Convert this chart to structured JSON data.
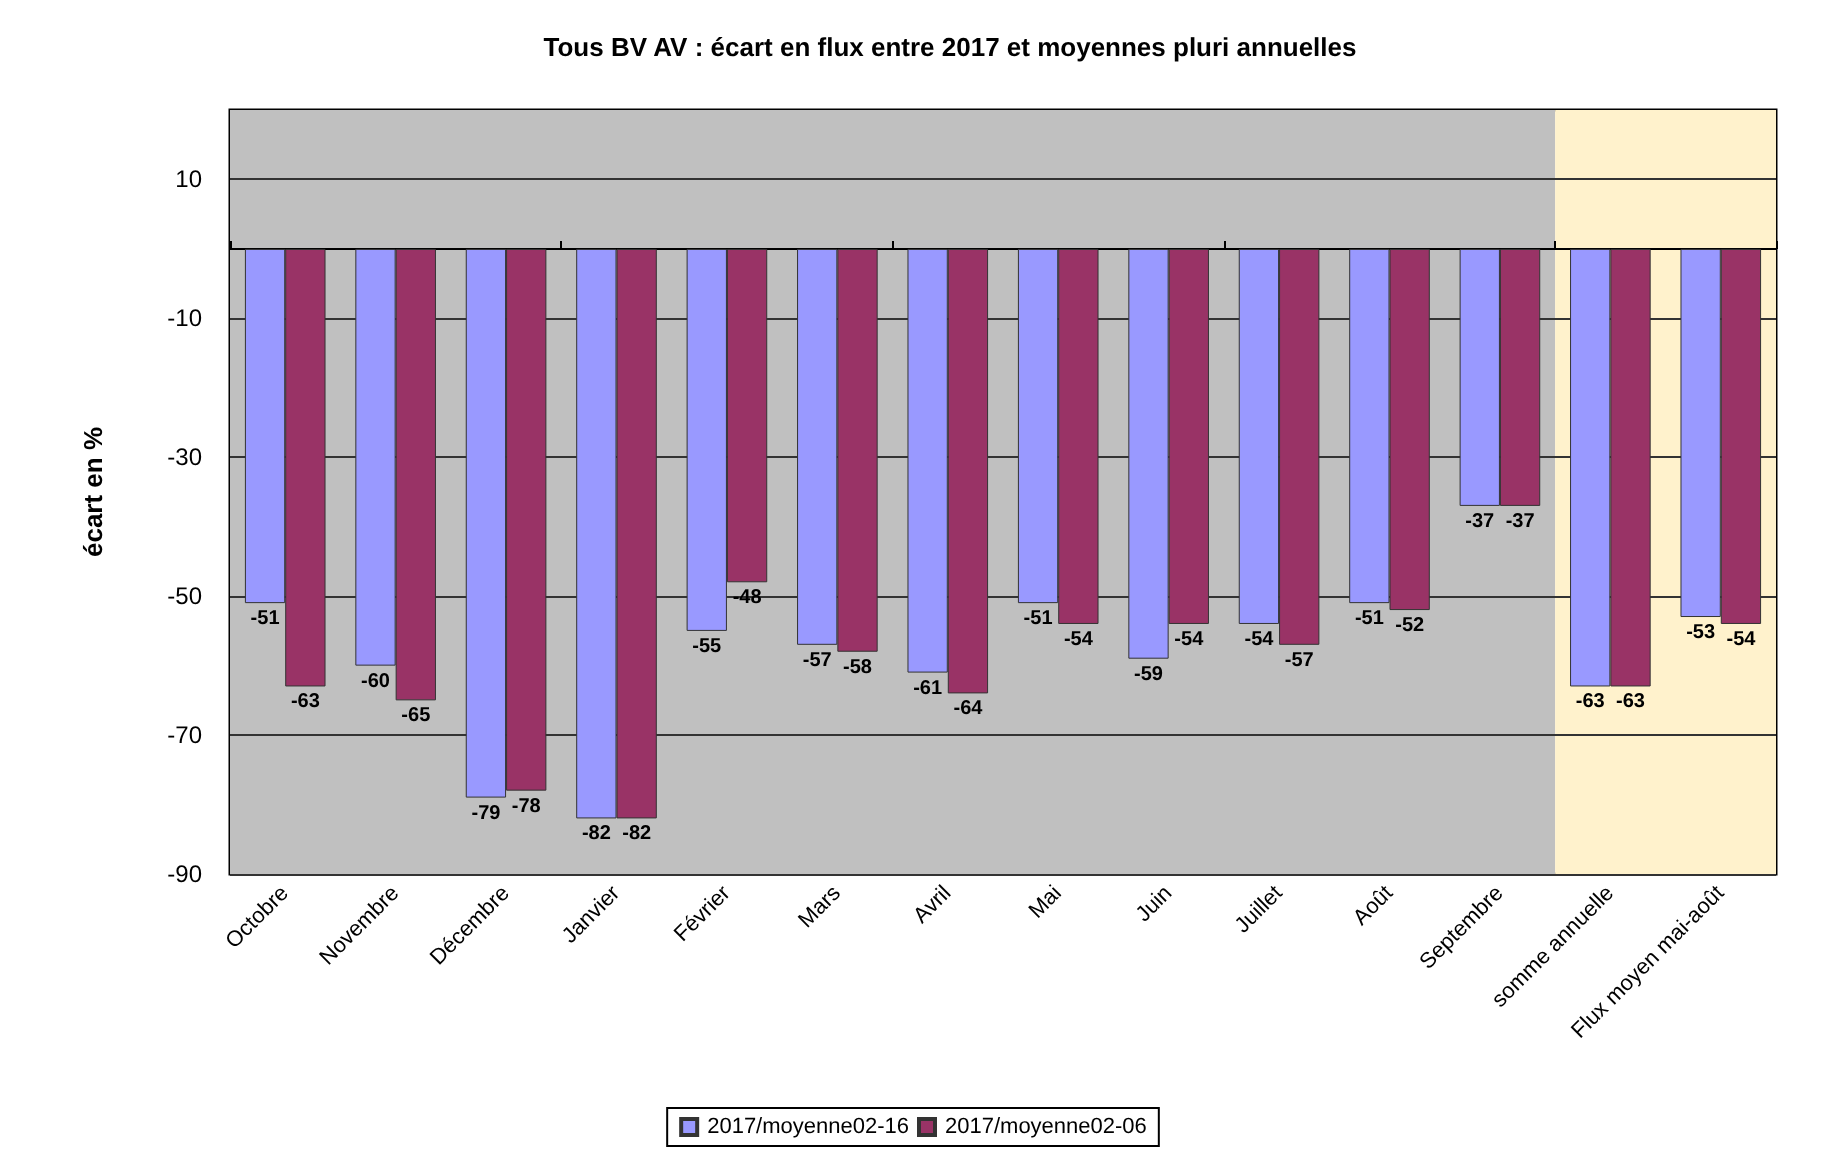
{
  "chart_data": {
    "type": "bar",
    "title": "Tous BV AV : écart en flux entre 2017 et moyennes pluri annuelles",
    "ylabel": "écart en %",
    "categories": [
      "Octobre",
      "Novembre",
      "Décembre",
      "Janvier",
      "Février",
      "Mars",
      "Avril",
      "Mai",
      "Juin",
      "Juillet",
      "Août",
      "Septembre",
      "somme annuelle",
      "Flux moyen mai-août"
    ],
    "series": [
      {
        "name": "2017/moyenne02-16",
        "color": "#9999ff",
        "values": [
          -51,
          -60,
          -79,
          -82,
          -55,
          -57,
          -61,
          -51,
          -59,
          -54,
          -51,
          -37,
          -63,
          -53
        ]
      },
      {
        "name": "2017/moyenne02-06",
        "color": "#993366",
        "values": [
          -63,
          -65,
          -78,
          -82,
          -48,
          -58,
          -64,
          -54,
          -54,
          -57,
          -52,
          -37,
          -63,
          -54
        ]
      }
    ],
    "ylim": [
      -90,
      20
    ],
    "yticks": [
      -90,
      -70,
      -50,
      -30,
      -10,
      10
    ],
    "grid": "y",
    "legend": "bottom",
    "data_labels": true,
    "bands": [
      {
        "axis": "x",
        "from": "Octobre",
        "to": "Septembre",
        "color": "#c0c0c0"
      },
      {
        "axis": "x",
        "from": "somme annuelle",
        "to": "Flux moyen mai-août",
        "color": "#fff2cc"
      }
    ]
  }
}
